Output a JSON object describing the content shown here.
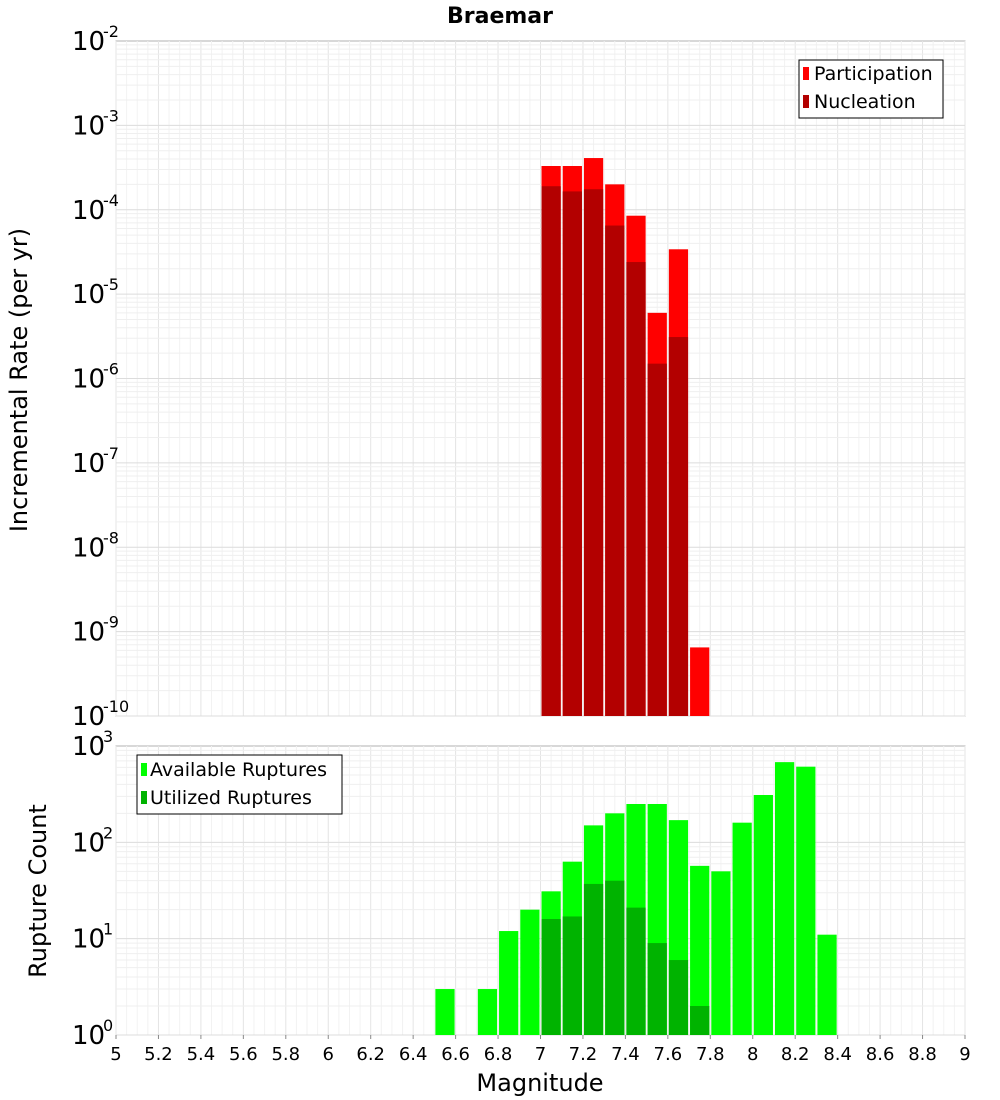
{
  "title": "Braemar",
  "chart_data": [
    {
      "type": "bar",
      "scale": "log",
      "title": "Braemar",
      "xlabel": "Magnitude",
      "ylabel": "Incremental Rate (per yr)",
      "xlim": [
        5,
        9
      ],
      "ylim_exponents": [
        -10,
        -2
      ],
      "x": [
        7.05,
        7.15,
        7.25,
        7.35,
        7.45,
        7.55,
        7.65,
        7.75
      ],
      "series": [
        {
          "name": "Participation",
          "color": "#ff0000",
          "values": [
            0.00033,
            0.00033,
            0.00041,
            0.0002,
            8.5e-05,
            6e-06,
            3.4e-05,
            6.5e-10
          ]
        },
        {
          "name": "Nucleation",
          "color": "#b30000",
          "values": [
            0.00019,
            0.000165,
            0.000175,
            6.5e-05,
            2.4e-05,
            1.5e-06,
            3.1e-06,
            null
          ]
        }
      ],
      "y_ticks": [
        {
          "base": "10",
          "exp": "-2"
        },
        {
          "base": "10",
          "exp": "-3"
        },
        {
          "base": "10",
          "exp": "-4"
        },
        {
          "base": "10",
          "exp": "-5"
        },
        {
          "base": "10",
          "exp": "-6"
        },
        {
          "base": "10",
          "exp": "-7"
        },
        {
          "base": "10",
          "exp": "-8"
        },
        {
          "base": "10",
          "exp": "-9"
        },
        {
          "base": "10",
          "exp": "-10"
        }
      ],
      "legend_position": "top-right"
    },
    {
      "type": "bar",
      "scale": "log",
      "xlabel": "Magnitude",
      "ylabel": "Rupture Count",
      "xlim": [
        5,
        9
      ],
      "ylim_exponents": [
        0,
        3
      ],
      "x": [
        6.55,
        6.65,
        6.75,
        6.85,
        6.95,
        7.05,
        7.15,
        7.25,
        7.35,
        7.45,
        7.55,
        7.65,
        7.75,
        7.85,
        7.95,
        8.05,
        8.15,
        8.25,
        8.35
      ],
      "series": [
        {
          "name": "Available Ruptures",
          "color": "#00ff00",
          "values": [
            3,
            null,
            3,
            12,
            20,
            31,
            63,
            150,
            200,
            250,
            250,
            170,
            57,
            50,
            160,
            310,
            680,
            610,
            11
          ]
        },
        {
          "name": "Utilized Ruptures",
          "color": "#00b300",
          "values": [
            null,
            null,
            null,
            null,
            null,
            16,
            17,
            37,
            40,
            21,
            9,
            6,
            2,
            null,
            null,
            null,
            null,
            null,
            null
          ]
        }
      ],
      "y_ticks": [
        {
          "base": "10",
          "exp": "3"
        },
        {
          "base": "10",
          "exp": "2"
        },
        {
          "base": "10",
          "exp": "1"
        },
        {
          "base": "10",
          "exp": "0"
        }
      ],
      "legend_position": "top-left"
    }
  ],
  "x_tick_labels": [
    "5",
    "5.2",
    "5.4",
    "5.6",
    "5.8",
    "6",
    "6.2",
    "6.4",
    "6.6",
    "6.8",
    "7",
    "7.2",
    "7.4",
    "7.6",
    "7.8",
    "8",
    "8.2",
    "8.4",
    "8.6",
    "8.8",
    "9"
  ]
}
